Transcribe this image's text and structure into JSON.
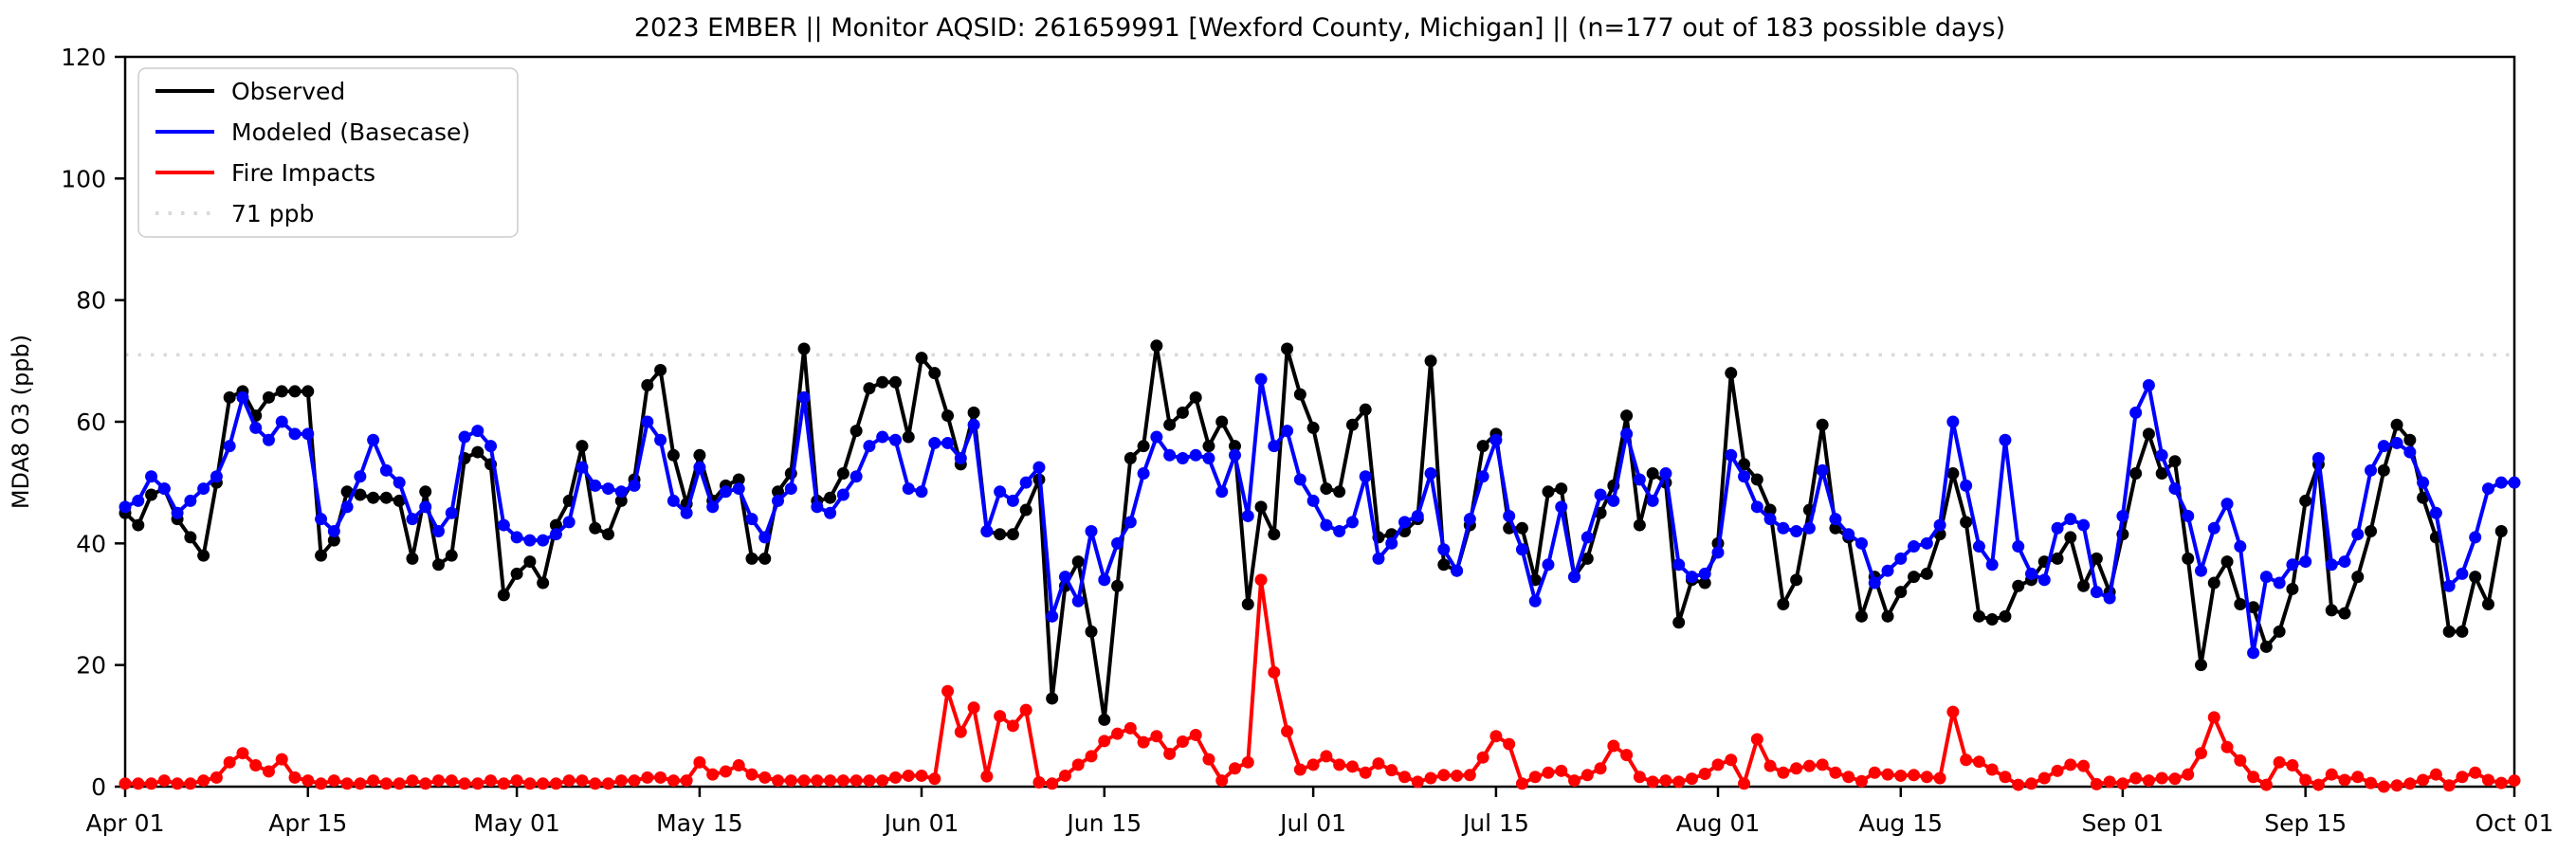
{
  "title": "2023 EMBER || Monitor AQSID: 261659991 [Wexford County, Michigan] || (n=177 out of 183 possible days)",
  "axes": {
    "ylabel": "MDA8 O3 (ppb)",
    "ylim": [
      0,
      120
    ],
    "yticks": [
      0,
      20,
      40,
      60,
      80,
      100,
      120
    ],
    "xtick_labels": [
      "Apr 01",
      "Apr 15",
      "May 01",
      "May 15",
      "Jun 01",
      "Jun 15",
      "Jul 01",
      "Jul 15",
      "Aug 01",
      "Aug 15",
      "Sep 01",
      "Sep 15",
      "Oct 01"
    ],
    "xtick_days": [
      0,
      14,
      30,
      44,
      61,
      75,
      91,
      105,
      122,
      136,
      153,
      167,
      183
    ]
  },
  "legend": {
    "entries": [
      {
        "label": "Observed",
        "color": "#000000",
        "style": "solid"
      },
      {
        "label": "Modeled (Basecase)",
        "color": "#0000ff",
        "style": "solid"
      },
      {
        "label": "Fire Impacts",
        "color": "#ff0000",
        "style": "solid"
      },
      {
        "label": "71 ppb",
        "color": "#d9d9d9",
        "style": "dotted"
      }
    ]
  },
  "chart_data": {
    "type": "line",
    "title": "2023 EMBER || Monitor AQSID: 261659991 [Wexford County, Michigan] || (n=177 out of 183 possible days)",
    "xlabel": "",
    "ylabel": "MDA8 O3 (ppb)",
    "ylim": [
      0,
      120
    ],
    "threshold": {
      "value": 71,
      "label": "71 ppb",
      "color": "#d9d9d9"
    },
    "x": [
      "Apr 01",
      "Apr 02",
      "Apr 03",
      "Apr 04",
      "Apr 05",
      "Apr 06",
      "Apr 07",
      "Apr 08",
      "Apr 09",
      "Apr 10",
      "Apr 11",
      "Apr 12",
      "Apr 13",
      "Apr 14",
      "Apr 15",
      "Apr 16",
      "Apr 17",
      "Apr 18",
      "Apr 19",
      "Apr 20",
      "Apr 21",
      "Apr 22",
      "Apr 23",
      "Apr 24",
      "Apr 25",
      "Apr 26",
      "Apr 27",
      "Apr 28",
      "Apr 29",
      "Apr 30",
      "May 01",
      "May 02",
      "May 03",
      "May 04",
      "May 05",
      "May 06",
      "May 07",
      "May 08",
      "May 09",
      "May 10",
      "May 11",
      "May 12",
      "May 13",
      "May 14",
      "May 15",
      "May 16",
      "May 17",
      "May 18",
      "May 19",
      "May 20",
      "May 21",
      "May 22",
      "May 23",
      "May 24",
      "May 25",
      "May 26",
      "May 27",
      "May 28",
      "May 29",
      "May 30",
      "May 31",
      "Jun 01",
      "Jun 02",
      "Jun 03",
      "Jun 04",
      "Jun 05",
      "Jun 06",
      "Jun 07",
      "Jun 08",
      "Jun 09",
      "Jun 10",
      "Jun 11",
      "Jun 12",
      "Jun 13",
      "Jun 14",
      "Jun 15",
      "Jun 16",
      "Jun 17",
      "Jun 18",
      "Jun 19",
      "Jun 20",
      "Jun 21",
      "Jun 22",
      "Jun 23",
      "Jun 24",
      "Jun 25",
      "Jun 26",
      "Jun 27",
      "Jun 28",
      "Jun 29",
      "Jun 30",
      "Jul 01",
      "Jul 02",
      "Jul 03",
      "Jul 04",
      "Jul 05",
      "Jul 06",
      "Jul 07",
      "Jul 08",
      "Jul 09",
      "Jul 10",
      "Jul 11",
      "Jul 12",
      "Jul 13",
      "Jul 14",
      "Jul 15",
      "Jul 16",
      "Jul 17",
      "Jul 18",
      "Jul 19",
      "Jul 20",
      "Jul 21",
      "Jul 22",
      "Jul 23",
      "Jul 24",
      "Jul 25",
      "Jul 26",
      "Jul 27",
      "Jul 28",
      "Jul 29",
      "Jul 30",
      "Jul 31",
      "Aug 01",
      "Aug 02",
      "Aug 03",
      "Aug 04",
      "Aug 05",
      "Aug 06",
      "Aug 07",
      "Aug 08",
      "Aug 09",
      "Aug 10",
      "Aug 11",
      "Aug 12",
      "Aug 13",
      "Aug 14",
      "Aug 15",
      "Aug 16",
      "Aug 17",
      "Aug 18",
      "Aug 19",
      "Aug 20",
      "Aug 21",
      "Aug 22",
      "Aug 23",
      "Aug 24",
      "Aug 25",
      "Aug 26",
      "Aug 27",
      "Aug 28",
      "Aug 29",
      "Aug 30",
      "Aug 31",
      "Sep 01",
      "Sep 02",
      "Sep 03",
      "Sep 04",
      "Sep 05",
      "Sep 06",
      "Sep 07",
      "Sep 08",
      "Sep 09",
      "Sep 10",
      "Sep 11",
      "Sep 12",
      "Sep 13",
      "Sep 14",
      "Sep 15",
      "Sep 16",
      "Sep 17",
      "Sep 18",
      "Sep 19",
      "Sep 20",
      "Sep 21",
      "Sep 22",
      "Sep 23",
      "Sep 24",
      "Sep 25",
      "Sep 26",
      "Sep 27",
      "Sep 28",
      "Sep 29",
      "Sep 30",
      "Oct 01"
    ],
    "series": [
      {
        "name": "Observed",
        "color": "#000000",
        "values": [
          45,
          43,
          48,
          49,
          44,
          41,
          38,
          50,
          64,
          65,
          61,
          64,
          65,
          65,
          65,
          38,
          40.5,
          48.5,
          48,
          47.5,
          47.5,
          47,
          37.5,
          48.5,
          36.5,
          38,
          54,
          55,
          53,
          31.5,
          35,
          37,
          33.5,
          43,
          47,
          56,
          42.5,
          41.5,
          47,
          50.5,
          66,
          68.5,
          54.5,
          46.5,
          54.5,
          47,
          49.5,
          50.5,
          37.5,
          37.5,
          48.5,
          51.5,
          72,
          47,
          47.5,
          51.5,
          58.5,
          65.5,
          66.5,
          66.5,
          57.5,
          70.5,
          68,
          61,
          53,
          61.5,
          42,
          41.5,
          41.5,
          45.5,
          50.5,
          14.5,
          33,
          37,
          25.5,
          11,
          33,
          54,
          56,
          72.5,
          59.5,
          61.5,
          64,
          56,
          60,
          56,
          30,
          46,
          41.5,
          72,
          64.5,
          59,
          49,
          48.5,
          59.5,
          62,
          41,
          41.5,
          42,
          44,
          70,
          36.5,
          35.5,
          43,
          56,
          58,
          42.5,
          42.5,
          34,
          48.5,
          49,
          34.5,
          37.5,
          45,
          49.5,
          61,
          43,
          51.5,
          50,
          27,
          34,
          33.5,
          40,
          68,
          53,
          50.5,
          45.5,
          30,
          34,
          45.5,
          59.5,
          42.5,
          41,
          28,
          34.5,
          28,
          32,
          34.5,
          35,
          41.5,
          51.5,
          43.5,
          28,
          27.5,
          28,
          33,
          34,
          37,
          37.5,
          41,
          33,
          37.5,
          32,
          41.5,
          51.5,
          58,
          51.5,
          53.5,
          37.5,
          20,
          33.5,
          37,
          30,
          29.5,
          23,
          25.5,
          32.5,
          47,
          53,
          29,
          28.5,
          34.5,
          42,
          52,
          59.5,
          57,
          47.5,
          41,
          25.5,
          25.5,
          34.5,
          30,
          42,
          null
        ]
      },
      {
        "name": "Modeled (Basecase)",
        "color": "#0000ff",
        "values": [
          46,
          47,
          51,
          49,
          45,
          47,
          49,
          51,
          56,
          64,
          59,
          57,
          60,
          58,
          58,
          44,
          42,
          46,
          51,
          57,
          52,
          50,
          44,
          46,
          42,
          45,
          57.5,
          58.5,
          56,
          43,
          41,
          40.5,
          40.5,
          41.5,
          43.5,
          52.5,
          49.5,
          49,
          48.5,
          49.5,
          60,
          57,
          47,
          45,
          52.5,
          46,
          48.5,
          49,
          44,
          41,
          47,
          49,
          64,
          46,
          45,
          48,
          51,
          56,
          57.5,
          57,
          49,
          48.5,
          56.5,
          56.5,
          54,
          59.5,
          42,
          48.5,
          47,
          50,
          52.5,
          28,
          34.5,
          30.5,
          42,
          34,
          40,
          43.5,
          51.5,
          57.5,
          54.5,
          54,
          54.5,
          54,
          48.5,
          54.5,
          44.5,
          67,
          56,
          58.5,
          50.5,
          47,
          43,
          42,
          43.5,
          51,
          37.5,
          40,
          43.5,
          44.5,
          51.5,
          39,
          35.5,
          44,
          51,
          57,
          44.5,
          39,
          30.5,
          36.5,
          46,
          34.5,
          41,
          48,
          47,
          58,
          50.5,
          47,
          51.5,
          36.5,
          34.5,
          35,
          38.5,
          54.5,
          51,
          46,
          44,
          42.5,
          42,
          42.5,
          52,
          44,
          41.5,
          40,
          33.5,
          35.5,
          37.5,
          39.5,
          40,
          43,
          60,
          49.5,
          39.5,
          36.5,
          57,
          39.5,
          35,
          34,
          42.5,
          44,
          43,
          32,
          31,
          44.5,
          61.5,
          66,
          54.5,
          49,
          44.5,
          35.5,
          42.5,
          46.5,
          39.5,
          22,
          34.5,
          33.5,
          36.5,
          37,
          54,
          36.5,
          37,
          41.5,
          52,
          56,
          56.5,
          55,
          50,
          45,
          33,
          35,
          41,
          49,
          50,
          50
        ]
      },
      {
        "name": "Fire Impacts",
        "color": "#ff0000",
        "values": [
          0.5,
          0.5,
          0.5,
          1,
          0.5,
          0.5,
          1,
          1.5,
          4,
          5.5,
          3.5,
          2.5,
          4.5,
          1.5,
          1,
          0.5,
          1,
          0.5,
          0.5,
          1,
          0.5,
          0.5,
          1,
          0.5,
          1,
          1,
          0.5,
          0.5,
          1,
          0.5,
          1,
          0.5,
          0.5,
          0.5,
          1,
          1,
          0.5,
          0.5,
          1,
          1,
          1.5,
          1.5,
          1,
          1,
          4,
          2,
          2.5,
          3.5,
          2,
          1.5,
          1,
          1,
          1,
          1,
          1,
          1,
          1,
          1,
          1,
          1.5,
          1.8,
          1.8,
          1.3,
          15.7,
          9,
          13,
          1.7,
          11.6,
          10,
          12.6,
          0.7,
          0.5,
          1.8,
          3.6,
          5,
          7.5,
          8.7,
          9.6,
          7.3,
          8.3,
          5.4,
          7.4,
          8.5,
          4.5,
          1,
          3,
          4,
          34,
          18.8,
          9.1,
          2.8,
          3.6,
          5,
          3.6,
          3.3,
          2.3,
          3.8,
          2.7,
          1.6,
          0.8,
          1.4,
          1.9,
          1.8,
          1.9,
          4.8,
          8.3,
          7,
          0.5,
          1.6,
          2.3,
          2.6,
          1,
          1.9,
          3,
          6.7,
          5.2,
          1.6,
          0.8,
          1,
          0.8,
          1.3,
          2.1,
          3.6,
          4.4,
          0.5,
          7.8,
          3.4,
          2.3,
          3,
          3.4,
          3.6,
          2.3,
          1.6,
          0.9,
          2.3,
          2,
          1.8,
          1.9,
          1.6,
          1.4,
          12.3,
          4.4,
          4.1,
          2.8,
          1.6,
          0.3,
          0.5,
          1.4,
          2.6,
          3.6,
          3.4,
          0.4,
          0.8,
          0.5,
          1.4,
          1,
          1.4,
          1.3,
          2,
          5.5,
          11.4,
          6.5,
          4.3,
          1.6,
          0.3,
          4,
          3.5,
          1.1,
          0.3,
          2,
          1.1,
          1.6,
          0.6,
          0,
          0.2,
          0.5,
          1.1,
          2,
          0.2,
          1.6,
          2.3,
          1.1,
          0.6,
          1
        ]
      }
    ],
    "legend_position": "upper left",
    "grid": false
  }
}
